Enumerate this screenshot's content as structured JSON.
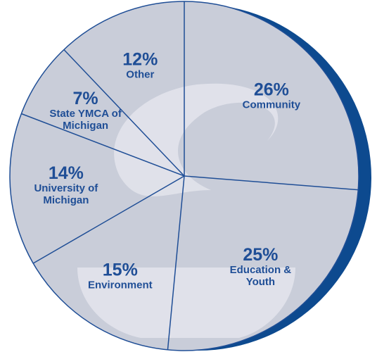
{
  "chart_data": {
    "type": "pie",
    "categories": [
      "Community",
      "Education & Youth",
      "Environment",
      "University of Michigan",
      "State YMCA of Michigan",
      "Other"
    ],
    "values": [
      26,
      25,
      15,
      14,
      7,
      12
    ],
    "value_labels": [
      "26%",
      "25%",
      "15%",
      "14%",
      "7%",
      "12%"
    ],
    "color": "#c9cdd9"
  }
}
